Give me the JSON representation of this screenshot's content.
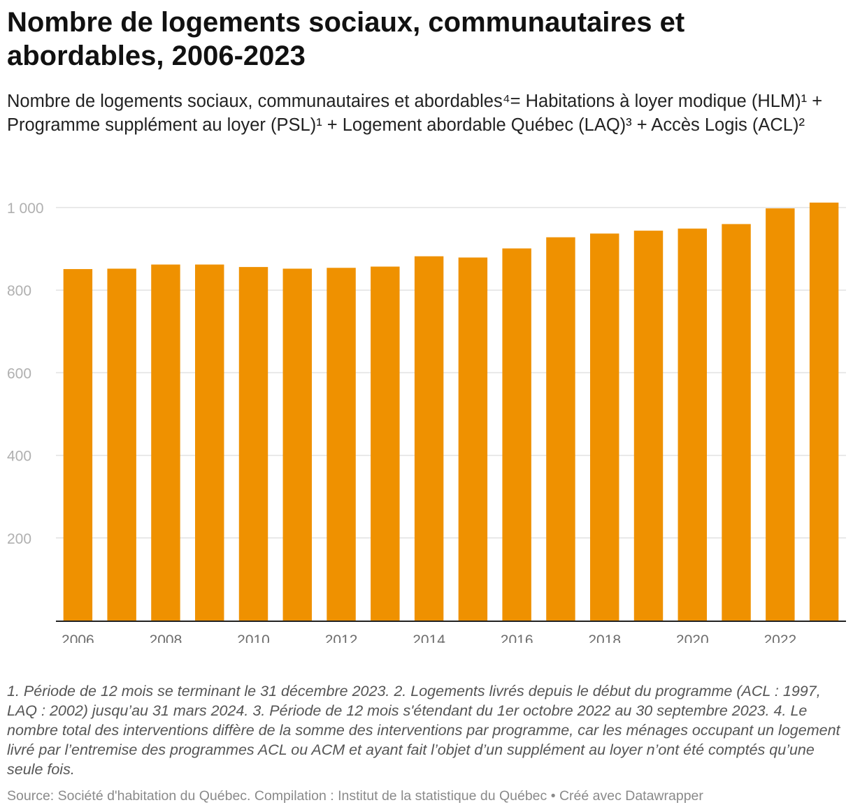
{
  "title": "Nombre de logements sociaux, communautaires et abordables, 2006-2023",
  "subtitle": "Nombre de logements sociaux, communautaires et abordables⁴= Habitations à loyer modique (HLM)¹ + Programme supplément au loyer (PSL)¹ + Logement abordable Québec (LAQ)³ + Accès Logis (ACL)²",
  "footnote": "1. Période de 12 mois se terminant le 31 décembre 2023. 2. Logements livrés depuis le début du programme (ACL : 1997, LAQ : 2002) jusqu’au 31 mars 2024. 3. Période de 12 mois s'étendant du 1er octobre 2022 au 30 septembre 2023. 4. Le nombre total des interventions diffère de la somme des interventions par programme, car les ménages occupant un logement livré par l’entremise des programmes ACL ou ACM et ayant fait l’objet d’un supplément au loyer n’ont été comptés qu’une seule fois.",
  "source": "Source: Société d'habitation du Québec. Compilation : Institut de la statistique du Québec • Créé avec Datawrapper",
  "colors": {
    "bar": "#ef9100",
    "grid": "#e2e2e2",
    "axis": "#222222",
    "tick_text": "#b0b0b0",
    "x_tick_text": "#6e6e6e"
  },
  "chart_data": {
    "type": "bar",
    "categories": [
      "2006",
      "2007",
      "2008",
      "2009",
      "2010",
      "2011",
      "2012",
      "2013",
      "2014",
      "2015",
      "2016",
      "2017",
      "2018",
      "2019",
      "2020",
      "2021",
      "2022",
      "2023"
    ],
    "values": [
      851,
      852,
      862,
      862,
      856,
      852,
      854,
      857,
      882,
      879,
      901,
      928,
      937,
      944,
      949,
      960,
      998,
      1012
    ],
    "ylim": [
      0,
      1000
    ],
    "y_ticks": [
      200,
      400,
      600,
      800,
      1000
    ],
    "y_tick_labels": [
      "200",
      "400",
      "600",
      "800",
      "1 000"
    ],
    "x_tick_labels": [
      "2006",
      "2008",
      "2010",
      "2012",
      "2014",
      "2016",
      "2018",
      "2020",
      "2022"
    ],
    "xlabel": "",
    "ylabel": "",
    "grid": true,
    "legend": "none"
  }
}
